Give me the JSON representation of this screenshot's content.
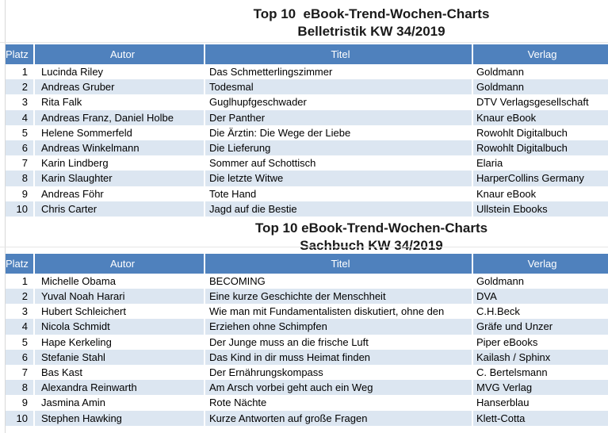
{
  "columns": [
    "Platz",
    "Autor",
    "Titel",
    "Verlag"
  ],
  "colors": {
    "header_bg": "#4f81bd",
    "header_text": "#ffffff",
    "band_bg": "#dce6f1",
    "body_text": "#000000"
  },
  "tables": [
    {
      "title_line1": "Top 10  eBook-Trend-Wochen-Charts",
      "title_line2": "Belletristik KW 34/2019",
      "rows": [
        {
          "platz": "1",
          "autor": "Lucinda Riley",
          "titel": "Das Schmetterlingszimmer",
          "verlag": "Goldmann"
        },
        {
          "platz": "2",
          "autor": "Andreas Gruber",
          "titel": "Todesmal",
          "verlag": "Goldmann"
        },
        {
          "platz": "3",
          "autor": "Rita Falk",
          "titel": "Guglhupfgeschwader",
          "verlag": "DTV Verlagsgesellschaft"
        },
        {
          "platz": "4",
          "autor": "Andreas Franz, Daniel Holbe",
          "titel": "Der Panther",
          "verlag": "Knaur eBook"
        },
        {
          "platz": "5",
          "autor": "Helene Sommerfeld",
          "titel": "Die Ärztin: Die Wege der Liebe",
          "verlag": "Rowohlt Digitalbuch"
        },
        {
          "platz": "6",
          "autor": "Andreas Winkelmann",
          "titel": "Die Lieferung",
          "verlag": "Rowohlt Digitalbuch"
        },
        {
          "platz": "7",
          "autor": "Karin Lindberg",
          "titel": "Sommer auf Schottisch",
          "verlag": "Elaria"
        },
        {
          "platz": "8",
          "autor": "Karin Slaughter",
          "titel": "Die letzte Witwe",
          "verlag": "HarperCollins Germany"
        },
        {
          "platz": "9",
          "autor": "Andreas Föhr",
          "titel": "Tote Hand",
          "verlag": "Knaur eBook"
        },
        {
          "platz": "10",
          "autor": "Chris Carter",
          "titel": "Jagd auf die Bestie",
          "verlag": "Ullstein Ebooks"
        }
      ]
    },
    {
      "title_line1": "Top 10 eBook-Trend-Wochen-Charts",
      "title_line2": "Sachbuch KW 34/2019",
      "rows": [
        {
          "platz": "1",
          "autor": "Michelle Obama",
          "titel": "BECOMING",
          "verlag": "Goldmann"
        },
        {
          "platz": "2",
          "autor": "Yuval Noah Harari",
          "titel": "Eine kurze Geschichte der Menschheit",
          "verlag": "DVA"
        },
        {
          "platz": "3",
          "autor": "Hubert Schleichert",
          "titel": "Wie man mit Fundamentalisten diskutiert, ohne den",
          "verlag": "C.H.Beck"
        },
        {
          "platz": "4",
          "autor": "Nicola Schmidt",
          "titel": "Erziehen ohne Schimpfen",
          "verlag": "Gräfe und Unzer"
        },
        {
          "platz": "5",
          "autor": "Hape Kerkeling",
          "titel": "Der Junge muss an die frische Luft",
          "verlag": "Piper eBooks"
        },
        {
          "platz": "6",
          "autor": "Stefanie Stahl",
          "titel": "Das Kind in dir muss Heimat finden",
          "verlag": "Kailash / Sphinx"
        },
        {
          "platz": "7",
          "autor": "Bas Kast",
          "titel": "Der Ernährungskompass",
          "verlag": "C. Bertelsmann"
        },
        {
          "platz": "8",
          "autor": "Alexandra Reinwarth",
          "titel": "Am Arsch vorbei geht auch ein Weg",
          "verlag": "MVG Verlag"
        },
        {
          "platz": "9",
          "autor": "Jasmina Amin",
          "titel": "Rote Nächte",
          "verlag": "Hanserblau"
        },
        {
          "platz": "10",
          "autor": "Stephen Hawking",
          "titel": "Kurze Antworten auf große Fragen",
          "verlag": "Klett-Cotta"
        }
      ]
    }
  ]
}
